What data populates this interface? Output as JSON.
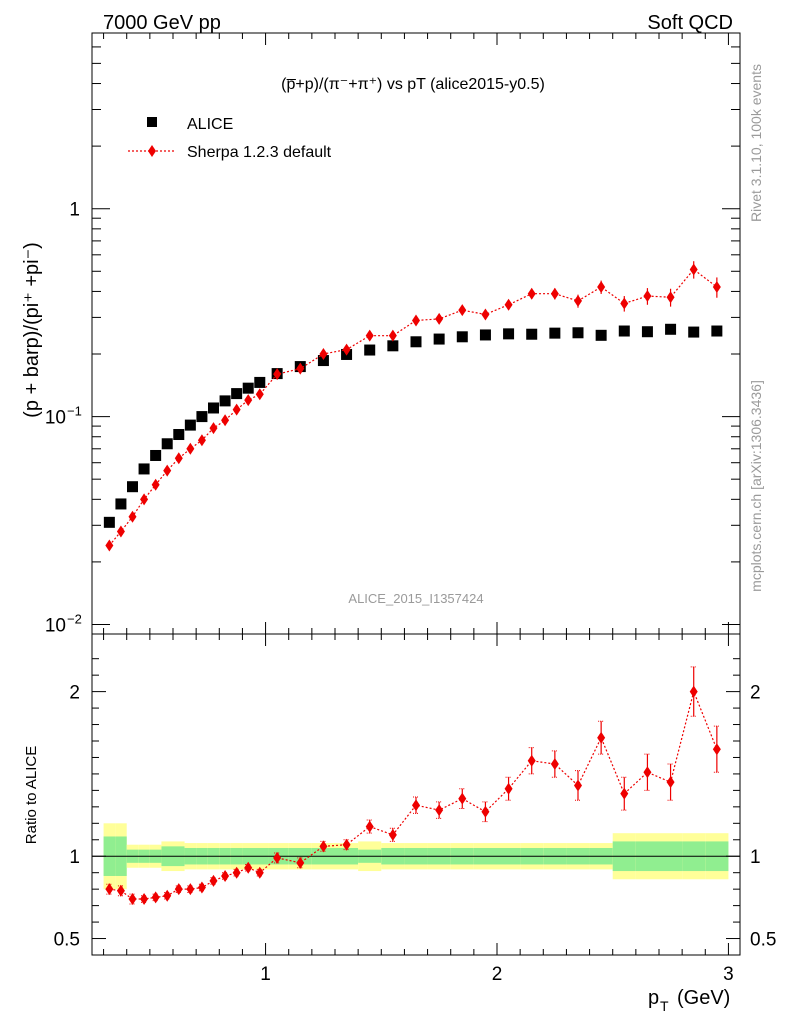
{
  "header": {
    "left": "7000 GeV pp",
    "right": "Soft QCD"
  },
  "side_text": {
    "rivet": "Rivet 3.1.10,  100k events",
    "mcplots": "mcplots.cern.ch [arXiv:1306.3436]"
  },
  "watermark": "ALICE_2015_I1357424",
  "chart_data": {
    "type": "scatter",
    "title": "(p̅+p)/(π⁻+π⁺) vs pT (alice2015-y0.5)",
    "ylabel": "(p + barp)/(pi⁺ +pi⁻)",
    "xlabel": "p_T (GeV)",
    "xlim": [
      0.25,
      3.05
    ],
    "ylim": [
      0.009,
      7.0
    ],
    "yscale": "log",
    "ratio_ylabel": "Ratio to ALICE",
    "ratio_ylim": [
      0.4,
      2.35
    ],
    "ratio_yticks": [
      0.5,
      1,
      2
    ],
    "xticks": [
      1,
      2,
      3
    ],
    "legend_position": "top-left",
    "legend": [
      "ALICE",
      "Sherpa 1.2.3 default"
    ],
    "colors": {
      "data": "#000000",
      "mc": "#ee0000",
      "band_inner": "#90ee90",
      "band_outer": "#ffff99"
    },
    "x": [
      0.325,
      0.375,
      0.425,
      0.475,
      0.525,
      0.575,
      0.625,
      0.675,
      0.725,
      0.775,
      0.825,
      0.875,
      0.925,
      0.975,
      1.05,
      1.15,
      1.25,
      1.35,
      1.45,
      1.55,
      1.65,
      1.75,
      1.85,
      1.95,
      2.05,
      2.15,
      2.25,
      2.35,
      2.45,
      2.55,
      2.65,
      2.75,
      2.85,
      2.95
    ],
    "series": [
      {
        "name": "ALICE",
        "values": [
          0.031,
          0.038,
          0.046,
          0.056,
          0.065,
          0.074,
          0.082,
          0.091,
          0.1,
          0.11,
          0.119,
          0.129,
          0.137,
          0.146,
          0.161,
          0.174,
          0.186,
          0.199,
          0.209,
          0.219,
          0.229,
          0.236,
          0.242,
          0.247,
          0.25,
          0.249,
          0.252,
          0.253,
          0.246,
          0.258,
          0.256,
          0.263,
          0.255,
          0.258
        ]
      },
      {
        "name": "Sherpa 1.2.3 default",
        "values": [
          0.024,
          0.028,
          0.033,
          0.04,
          0.047,
          0.055,
          0.063,
          0.07,
          0.077,
          0.088,
          0.096,
          0.108,
          0.12,
          0.128,
          0.16,
          0.17,
          0.2,
          0.21,
          0.245,
          0.245,
          0.29,
          0.295,
          0.325,
          0.31,
          0.345,
          0.39,
          0.39,
          0.36,
          0.42,
          0.35,
          0.38,
          0.375,
          0.51,
          0.42
        ],
        "errors": [
          0.001,
          0.001,
          0.001,
          0.001,
          0.002,
          0.002,
          0.002,
          0.002,
          0.002,
          0.003,
          0.003,
          0.003,
          0.004,
          0.004,
          0.005,
          0.005,
          0.006,
          0.007,
          0.009,
          0.01,
          0.012,
          0.013,
          0.015,
          0.016,
          0.019,
          0.022,
          0.024,
          0.026,
          0.031,
          0.03,
          0.035,
          0.037,
          0.049,
          0.047
        ]
      }
    ],
    "ratio": [
      0.8,
      0.79,
      0.74,
      0.74,
      0.75,
      0.76,
      0.8,
      0.8,
      0.81,
      0.85,
      0.88,
      0.9,
      0.93,
      0.9,
      0.99,
      0.96,
      1.06,
      1.07,
      1.18,
      1.13,
      1.31,
      1.28,
      1.35,
      1.27,
      1.41,
      1.58,
      1.56,
      1.43,
      1.72,
      1.38,
      1.51,
      1.45,
      2.0,
      1.65
    ],
    "ratio_errors": [
      0.03,
      0.03,
      0.03,
      0.02,
      0.02,
      0.02,
      0.02,
      0.02,
      0.02,
      0.02,
      0.02,
      0.02,
      0.02,
      0.02,
      0.03,
      0.03,
      0.03,
      0.03,
      0.04,
      0.04,
      0.05,
      0.05,
      0.06,
      0.06,
      0.07,
      0.08,
      0.08,
      0.09,
      0.1,
      0.1,
      0.11,
      0.11,
      0.15,
      0.14
    ],
    "band_inner": [
      0.12,
      0.12,
      0.04,
      0.04,
      0.04,
      0.06,
      0.06,
      0.05,
      0.05,
      0.05,
      0.05,
      0.05,
      0.05,
      0.05,
      0.05,
      0.05,
      0.05,
      0.05,
      0.04,
      0.05,
      0.05,
      0.05,
      0.05,
      0.05,
      0.05,
      0.05,
      0.05,
      0.05,
      0.05,
      0.09,
      0.09,
      0.09,
      0.09,
      0.09
    ],
    "band_outer": [
      0.2,
      0.2,
      0.07,
      0.07,
      0.07,
      0.09,
      0.09,
      0.08,
      0.08,
      0.08,
      0.08,
      0.08,
      0.08,
      0.08,
      0.08,
      0.08,
      0.08,
      0.08,
      0.09,
      0.08,
      0.08,
      0.08,
      0.08,
      0.08,
      0.08,
      0.08,
      0.08,
      0.08,
      0.08,
      0.14,
      0.14,
      0.14,
      0.14,
      0.14
    ]
  }
}
